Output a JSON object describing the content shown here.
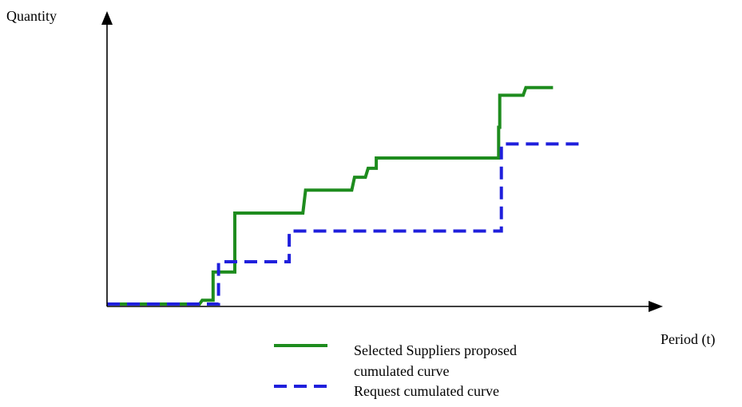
{
  "chart_data": {
    "type": "line",
    "title": "",
    "xlabel": "Period (t)",
    "ylabel": "Quantity",
    "grid": false,
    "legend_position": "bottom-center",
    "ticks": "none",
    "xlim": [
      0,
      100
    ],
    "ylim": [
      0,
      100
    ],
    "series": [
      {
        "name": "Selected Suppliers proposed cumulated curve",
        "style": "solid",
        "color": "#1e8c1e",
        "x": [
          0,
          17,
          17.5,
          19.5,
          19.5,
          23.5,
          23.5,
          36,
          36.5,
          45,
          45.5,
          47.5,
          48,
          49.5,
          49.5,
          72,
          72,
          72.2,
          72.2,
          76.5,
          77,
          82
        ],
        "y": [
          0,
          0,
          1.5,
          1.5,
          12.5,
          12.5,
          35.5,
          35.5,
          44.5,
          44.5,
          49.5,
          49.5,
          53,
          53,
          57,
          57,
          69,
          69,
          81.5,
          81.5,
          84.5,
          84.5
        ]
      },
      {
        "name": "Request cumulated curve",
        "style": "dashed",
        "color": "#1f1fdc",
        "x": [
          0,
          20.5,
          20.5,
          33.5,
          33.5,
          72.5,
          72.5,
          87
        ],
        "y": [
          0,
          0,
          16.5,
          16.5,
          28.5,
          28.5,
          62.5,
          62.5
        ]
      }
    ]
  }
}
